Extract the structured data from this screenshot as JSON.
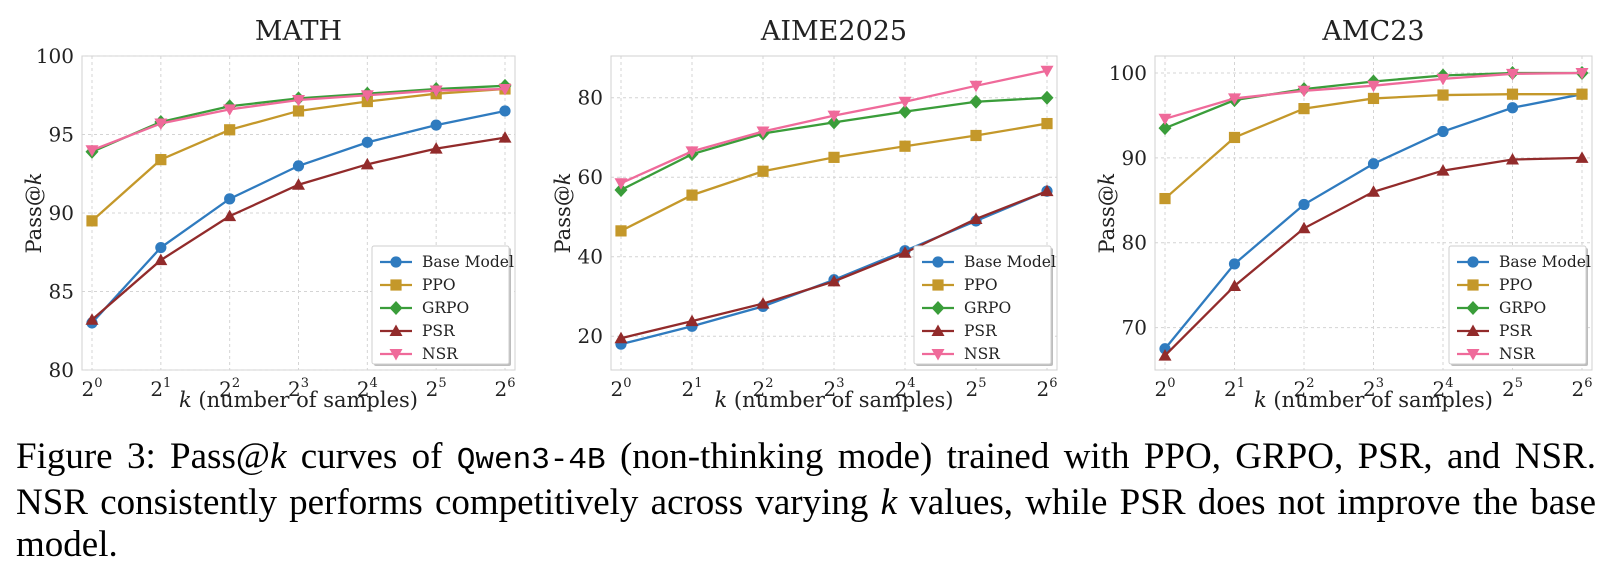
{
  "figure": {
    "caption": {
      "lead": "Figure 3: Pass@",
      "k1": "k",
      "after_k": " curves of ",
      "model": "Qwen3-4B",
      "mid": " (non-thinking mode) trained with PPO, GRPO, PSR, and NSR. NSR consistently performs competitively across varying ",
      "k2": "k",
      "tail": " values, while PSR does not improve the base model."
    }
  },
  "chart_data": [
    {
      "type": "line",
      "title": "MATH",
      "xlabel": "k (number of samples)",
      "ylabel": "Pass@k",
      "x": [
        1,
        2,
        4,
        8,
        16,
        32,
        64
      ],
      "x_tick_labels": [
        "2^0",
        "2^1",
        "2^2",
        "2^3",
        "2^4",
        "2^5",
        "2^6"
      ],
      "x_scale": "log2",
      "ylim": [
        80,
        100
      ],
      "y_ticks": [
        80,
        85,
        90,
        95,
        100
      ],
      "grid": true,
      "legend": "lower-right",
      "series": [
        {
          "name": "Base Model",
          "color": "#2f7bbf",
          "marker": "circle",
          "values": [
            83.0,
            87.8,
            90.9,
            93.0,
            94.5,
            95.6,
            96.5
          ]
        },
        {
          "name": "PPO",
          "color": "#c4982a",
          "marker": "square",
          "values": [
            89.5,
            93.4,
            95.3,
            96.5,
            97.1,
            97.6,
            97.9
          ]
        },
        {
          "name": "GRPO",
          "color": "#3a9d3a",
          "marker": "diamond",
          "values": [
            93.9,
            95.8,
            96.8,
            97.3,
            97.6,
            97.9,
            98.1
          ]
        },
        {
          "name": "PSR",
          "color": "#922b2b",
          "marker": "triangle-up",
          "values": [
            83.2,
            87.0,
            89.8,
            91.8,
            93.1,
            94.1,
            94.8
          ]
        },
        {
          "name": "NSR",
          "color": "#ef6a9a",
          "marker": "triangle-down",
          "values": [
            94.0,
            95.7,
            96.6,
            97.2,
            97.5,
            97.8,
            97.9
          ]
        }
      ]
    },
    {
      "type": "line",
      "title": "AIME2025",
      "xlabel": "k (number of samples)",
      "ylabel": "Pass@k",
      "x": [
        1,
        2,
        4,
        8,
        16,
        32,
        64
      ],
      "x_tick_labels": [
        "2^0",
        "2^1",
        "2^2",
        "2^3",
        "2^4",
        "2^5",
        "2^6"
      ],
      "x_scale": "log2",
      "ylim": [
        11.5,
        90.5
      ],
      "y_ticks": [
        20,
        40,
        60,
        80
      ],
      "grid": true,
      "legend": "lower-right",
      "series": [
        {
          "name": "Base Model",
          "color": "#2f7bbf",
          "marker": "circle",
          "values": [
            18.0,
            22.5,
            27.5,
            34.2,
            41.5,
            49.0,
            56.5
          ]
        },
        {
          "name": "PPO",
          "color": "#c4982a",
          "marker": "square",
          "values": [
            46.5,
            55.5,
            61.5,
            65.0,
            67.8,
            70.5,
            73.5
          ]
        },
        {
          "name": "GRPO",
          "color": "#3a9d3a",
          "marker": "diamond",
          "values": [
            56.8,
            65.8,
            71.0,
            73.8,
            76.5,
            79.0,
            80.0
          ]
        },
        {
          "name": "PSR",
          "color": "#922b2b",
          "marker": "triangle-up",
          "values": [
            19.5,
            23.8,
            28.2,
            33.8,
            41.0,
            49.5,
            56.5
          ]
        },
        {
          "name": "NSR",
          "color": "#ef6a9a",
          "marker": "triangle-down",
          "values": [
            58.5,
            66.5,
            71.5,
            75.5,
            79.0,
            83.0,
            86.8
          ]
        }
      ]
    },
    {
      "type": "line",
      "title": "AMC23",
      "xlabel": "k (number of samples)",
      "ylabel": "Pass@k",
      "x": [
        1,
        2,
        4,
        8,
        16,
        32,
        64
      ],
      "x_tick_labels": [
        "2^0",
        "2^1",
        "2^2",
        "2^3",
        "2^4",
        "2^5",
        "2^6"
      ],
      "x_scale": "log2",
      "ylim": [
        65,
        102
      ],
      "y_ticks": [
        70,
        80,
        90,
        100
      ],
      "grid": true,
      "legend": "lower-right",
      "series": [
        {
          "name": "Base Model",
          "color": "#2f7bbf",
          "marker": "circle",
          "values": [
            67.5,
            77.5,
            84.5,
            89.3,
            93.1,
            95.9,
            97.5
          ]
        },
        {
          "name": "PPO",
          "color": "#c4982a",
          "marker": "square",
          "values": [
            85.2,
            92.4,
            95.8,
            97.0,
            97.4,
            97.5,
            97.5
          ]
        },
        {
          "name": "GRPO",
          "color": "#3a9d3a",
          "marker": "diamond",
          "values": [
            93.5,
            96.8,
            98.1,
            99.0,
            99.7,
            100.0,
            100.0
          ]
        },
        {
          "name": "PSR",
          "color": "#922b2b",
          "marker": "triangle-up",
          "values": [
            66.7,
            74.9,
            81.7,
            86.0,
            88.5,
            89.8,
            90.0
          ]
        },
        {
          "name": "NSR",
          "color": "#ef6a9a",
          "marker": "triangle-down",
          "values": [
            94.6,
            97.0,
            97.9,
            98.5,
            99.3,
            99.9,
            100.0
          ]
        }
      ]
    }
  ]
}
